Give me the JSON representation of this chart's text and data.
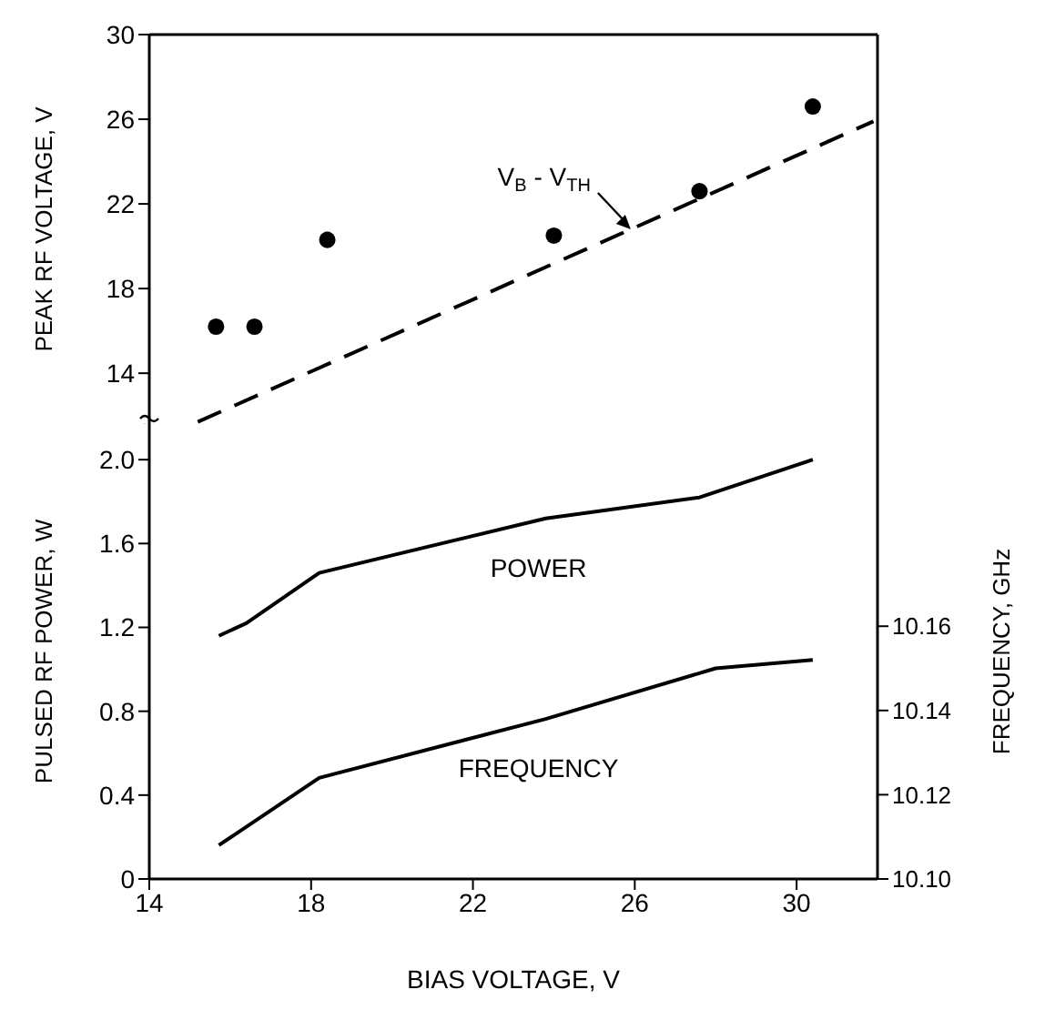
{
  "chart_data": [
    {
      "type": "scatter",
      "xlim": [
        14,
        32
      ],
      "ylim": [
        11.6,
        30
      ],
      "yticks": [
        14,
        18,
        22,
        26,
        30
      ],
      "ylabel": "PEAK RF VOLTAGE, V",
      "tick_labels": "y",
      "annotations": [
        {
          "text": "V$_{B}$ - V$_{TH}$",
          "x": 25.9,
          "y": 20.8
        }
      ],
      "series": [
        {
          "marker": "circle",
          "color": "#000000",
          "x": [
            15.65,
            16.6,
            18.4,
            24.0,
            27.6,
            30.4
          ],
          "values": [
            16.2,
            16.2,
            20.3,
            20.5,
            22.6,
            26.6
          ]
        },
        {
          "type": "line",
          "line_style": "dashed",
          "marker": "none",
          "color": "#000000",
          "x": [
            15.2,
            31.9
          ],
          "values": [
            11.7,
            25.9
          ]
        }
      ]
    },
    {
      "type": "line",
      "xlim": [
        14,
        32
      ],
      "xticks": [
        14,
        18,
        22,
        26,
        30
      ],
      "ylim": [
        0,
        2.17
      ],
      "yticks": [
        0,
        0.4,
        0.8,
        1.2,
        1.6,
        {
          "value": 2,
          "label": "2.0"
        }
      ],
      "y2lim": [
        10.1,
        10.208
      ],
      "y2ticks": [
        {
          "value": 10.1,
          "label": "10.10"
        },
        {
          "value": 10.12,
          "label": "10.12"
        },
        {
          "value": 10.14,
          "label": "10.14"
        },
        {
          "value": 10.16,
          "label": "10.16"
        }
      ],
      "xlabel": "BIAS VOLTAGE, V",
      "ylabel": "PULSED RF POWER, W",
      "y2label": "FREQUENCY, GHz",
      "marker": "none",
      "line_style": "solid",
      "series": [
        {
          "name": "POWER",
          "color": "#000000",
          "x": [
            15.72,
            16.4,
            18.2,
            23.8,
            27.6,
            30.4
          ],
          "values": [
            1.16,
            1.22,
            1.46,
            1.72,
            1.82,
            2.0
          ]
        },
        {
          "name": "FREQUENCY",
          "axis": "y2",
          "color": "#000000",
          "x": [
            15.72,
            18.2,
            23.8,
            28.0,
            30.4
          ],
          "values": [
            10.108,
            10.124,
            10.138,
            10.15,
            10.152
          ]
        }
      ]
    }
  ]
}
